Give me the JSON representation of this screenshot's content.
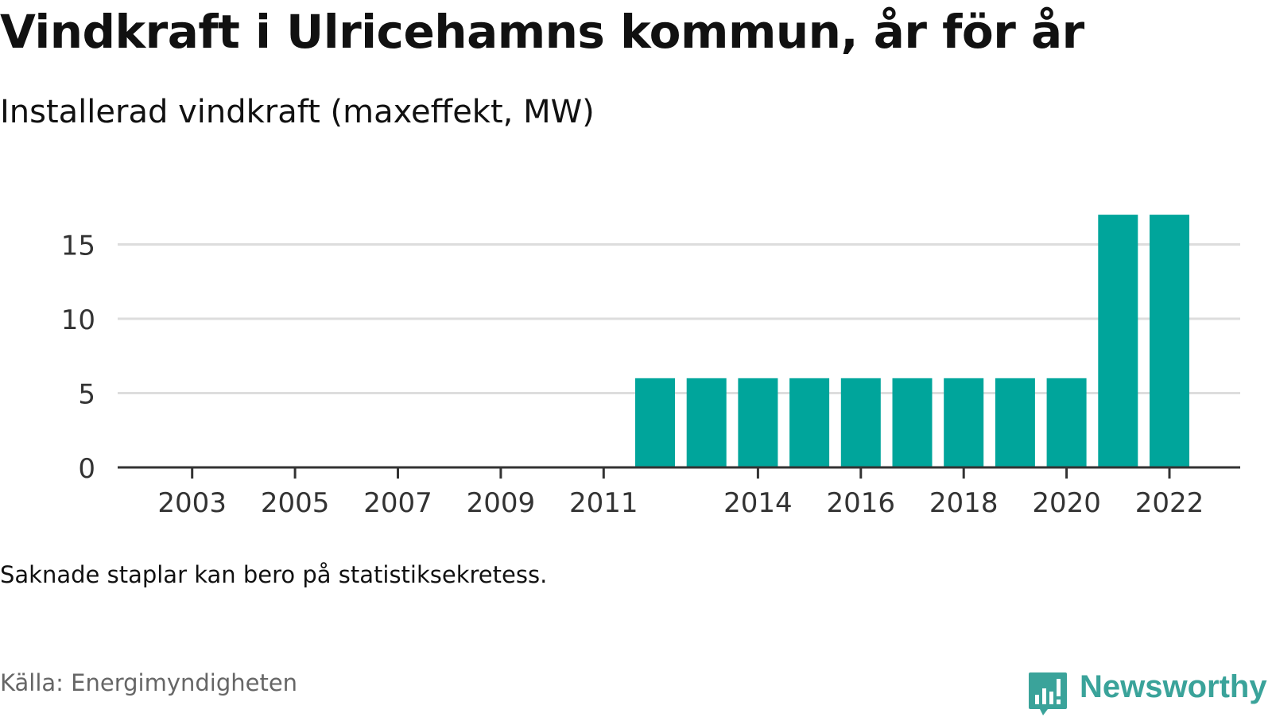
{
  "header": {
    "title": "Vindkraft i Ulricehamns kommun, år för år",
    "subtitle": "Installerad vindkraft (maxeffekt, MW)"
  },
  "footer": {
    "note": "Saknade staplar kan bero på statistiksekretess.",
    "source": "Källa: Energimyndigheten",
    "brand": "Newsworthy",
    "brand_icon": "chart-bubble-icon"
  },
  "colors": {
    "bar": "#00a59b",
    "grid": "#dddddd",
    "axis": "#333333",
    "brand": "#3aa39a"
  },
  "chart_data": {
    "type": "bar",
    "title": "Vindkraft i Ulricehamns kommun, år för år",
    "subtitle": "Installerad vindkraft (maxeffekt, MW)",
    "categories": [
      2002,
      2003,
      2004,
      2005,
      2006,
      2007,
      2008,
      2009,
      2010,
      2011,
      2012,
      2013,
      2014,
      2015,
      2016,
      2017,
      2018,
      2019,
      2020,
      2021,
      2022
    ],
    "values": [
      0,
      0,
      0,
      0,
      0,
      0,
      0,
      0,
      0,
      0,
      6,
      6,
      6,
      6,
      6,
      6,
      6,
      6,
      6,
      17,
      17
    ],
    "x_tick_labels": [
      "2003",
      "2005",
      "2007",
      "2009",
      "2011",
      "2014",
      "2016",
      "2018",
      "2020",
      "2022"
    ],
    "y_ticks": [
      0,
      5,
      10,
      15
    ],
    "ylim": [
      0,
      17
    ],
    "grid": true,
    "legend": "none",
    "xlabel": "",
    "ylabel": ""
  }
}
